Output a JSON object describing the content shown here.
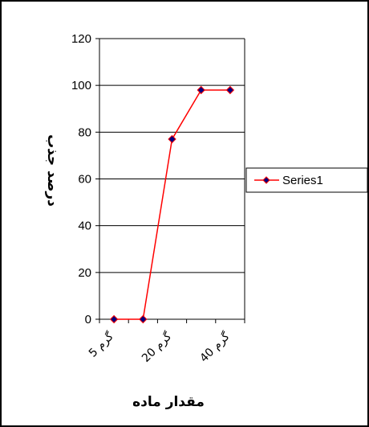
{
  "chart_data": {
    "type": "line",
    "categories": [
      "5 گرم",
      "",
      "20 گرم",
      "",
      "40 گرم"
    ],
    "x_tick_labels": [
      "5 گرم",
      "20 گرم",
      "40 گرم"
    ],
    "series": [
      {
        "name": "Series1",
        "values": [
          0,
          0,
          77,
          98,
          98
        ]
      }
    ],
    "title": "",
    "xlabel": "مقدار ماده",
    "ylabel": "درصد جذب",
    "ylim": [
      0,
      120
    ],
    "yticks": [
      0,
      20,
      40,
      60,
      80,
      100,
      120
    ],
    "grid": true,
    "legend": "right",
    "colors": {
      "line": "#ff0000",
      "marker_fill": "#000080",
      "marker_edge": "#ff0000",
      "grid": "#000000",
      "frame": "#000000"
    }
  }
}
